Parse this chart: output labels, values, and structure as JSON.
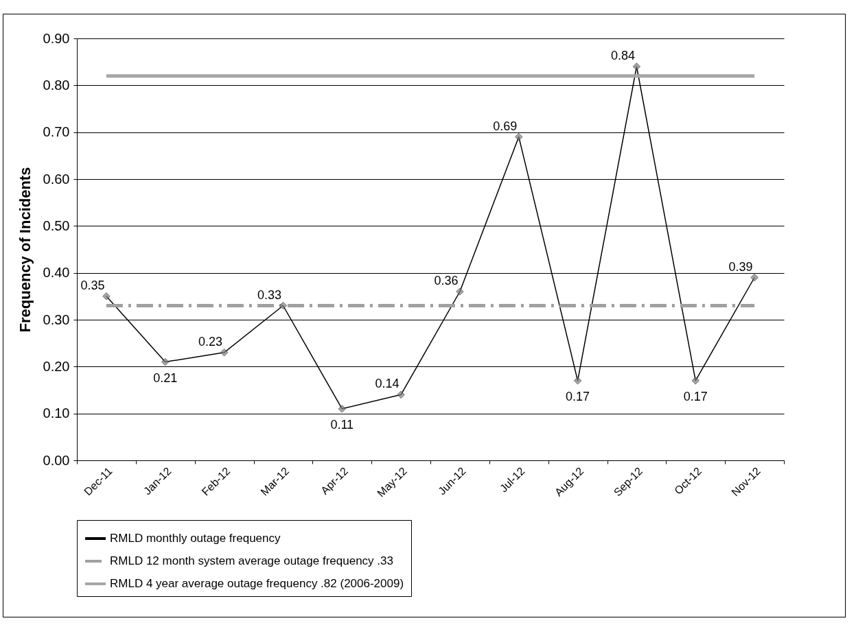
{
  "chart_data": {
    "type": "line",
    "ylabel": "Frequency of Incidents",
    "categories": [
      "Dec-11",
      "Jan-12",
      "Feb-12",
      "Mar-12",
      "Apr-12",
      "May-12",
      "Jun-12",
      "Jul-12",
      "Aug-12",
      "Sep-12",
      "Oct-12",
      "Nov-12"
    ],
    "series": [
      {
        "name": "RMLD monthly outage frequency",
        "color": "#000000",
        "marker": "diamond",
        "line_style": "solid",
        "values": [
          0.35,
          0.21,
          0.23,
          0.33,
          0.11,
          0.14,
          0.36,
          0.69,
          0.17,
          0.84,
          0.17,
          0.39
        ],
        "value_labels": [
          "0.35",
          "0.21",
          "0.23",
          "0.33",
          "0.11",
          "0.14",
          "0.36",
          "0.69",
          "0.17",
          "0.84",
          "0.17",
          "0.39"
        ]
      },
      {
        "name": "RMLD 12 month system average outage frequency .33",
        "color": "#a0a0a0",
        "marker": "none",
        "line_style": "dashed",
        "values": [
          0.33,
          0.33,
          0.33,
          0.33,
          0.33,
          0.33,
          0.33,
          0.33,
          0.33,
          0.33,
          0.33,
          0.33
        ]
      },
      {
        "name": "RMLD 4 year average outage frequency .82 (2006-2009)",
        "color": "#a6a6a6",
        "marker": "none",
        "line_style": "solid",
        "values": [
          0.82,
          0.82,
          0.82,
          0.82,
          0.82,
          0.82,
          0.82,
          0.82,
          0.82,
          0.82,
          0.82,
          0.82
        ]
      }
    ],
    "ylim": [
      0,
      0.9
    ],
    "yticks": [
      {
        "value": 0,
        "label": "0.00"
      },
      {
        "value": 0.1,
        "label": "0.10"
      },
      {
        "value": 0.2,
        "label": "0.20"
      },
      {
        "value": 0.3,
        "label": "0.30"
      },
      {
        "value": 0.4,
        "label": "0.40"
      },
      {
        "value": 0.5,
        "label": "0.50"
      },
      {
        "value": 0.6,
        "label": "0.60"
      },
      {
        "value": 0.7,
        "label": "0.70"
      },
      {
        "value": 0.8,
        "label": "0.80"
      },
      {
        "value": 0.9,
        "label": "0.90"
      }
    ],
    "grid": "y",
    "legend": "bottom"
  }
}
